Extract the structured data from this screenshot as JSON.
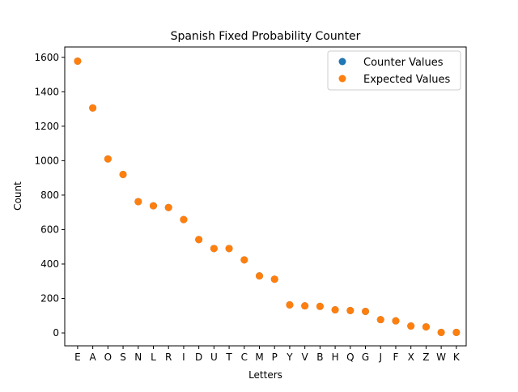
{
  "chart_data": {
    "type": "scatter",
    "title": "Spanish Fixed Probability Counter",
    "xlabel": "Letters",
    "ylabel": "Count",
    "categories": [
      "E",
      "A",
      "O",
      "S",
      "N",
      "L",
      "R",
      "I",
      "D",
      "U",
      "T",
      "C",
      "M",
      "P",
      "Y",
      "V",
      "B",
      "H",
      "Q",
      "G",
      "J",
      "F",
      "X",
      "Z",
      "W",
      "K"
    ],
    "ylim": [
      -75,
      1660
    ],
    "yticks": [
      0,
      200,
      400,
      600,
      800,
      1000,
      1200,
      1400,
      1600
    ],
    "grid": false,
    "legend_position": "top-right",
    "series": [
      {
        "name": "Counter Values",
        "color": "#1f77b4",
        "values": [
          1578,
          1306,
          1010,
          920,
          762,
          738,
          728,
          658,
          542,
          490,
          490,
          424,
          331,
          312,
          163,
          157,
          154,
          134,
          130,
          125,
          77,
          70,
          40,
          35,
          3,
          3
        ]
      },
      {
        "name": "Expected Values",
        "color": "#ff7f0e",
        "values": [
          1578,
          1306,
          1010,
          920,
          762,
          738,
          728,
          658,
          542,
          490,
          490,
          424,
          331,
          312,
          163,
          157,
          154,
          134,
          130,
          125,
          77,
          70,
          40,
          35,
          3,
          3
        ]
      }
    ]
  }
}
